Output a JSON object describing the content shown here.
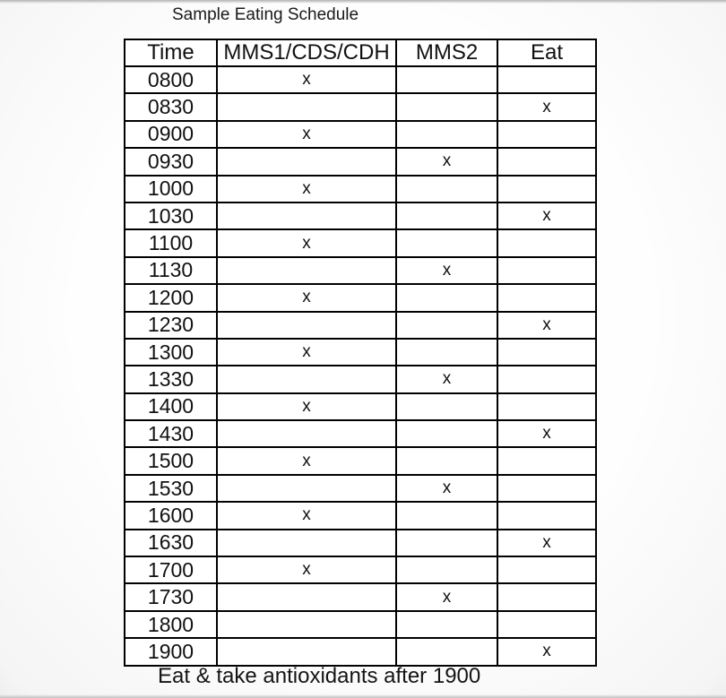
{
  "page": {
    "title": "Sample Eating Schedule",
    "footer": "Eat & take antioxidants after 1900"
  },
  "table": {
    "columns": [
      "Time",
      "MMS1/CDS/CDH",
      "MMS2",
      "Eat"
    ],
    "rows": [
      [
        "0800",
        "x",
        "",
        ""
      ],
      [
        "0830",
        "",
        "",
        "x"
      ],
      [
        "0900",
        "x",
        "",
        ""
      ],
      [
        "0930",
        "",
        "x",
        ""
      ],
      [
        "1000",
        "x",
        "",
        ""
      ],
      [
        "1030",
        "",
        "",
        "x"
      ],
      [
        "1100",
        "x",
        "",
        ""
      ],
      [
        "1130",
        "",
        "x",
        ""
      ],
      [
        "1200",
        "x",
        "",
        ""
      ],
      [
        "1230",
        "",
        "",
        "x"
      ],
      [
        "1300",
        "x",
        "",
        ""
      ],
      [
        "1330",
        "",
        "x",
        ""
      ],
      [
        "1400",
        "x",
        "",
        ""
      ],
      [
        "1430",
        "",
        "",
        "x"
      ],
      [
        "1500",
        "x",
        "",
        ""
      ],
      [
        "1530",
        "",
        "x",
        ""
      ],
      [
        "1600",
        "x",
        "",
        ""
      ],
      [
        "1630",
        "",
        "",
        "x"
      ],
      [
        "1700",
        "x",
        "",
        ""
      ],
      [
        "1730",
        "",
        "x",
        ""
      ],
      [
        "1800",
        "",
        "",
        ""
      ],
      [
        "1900",
        "",
        "",
        "x"
      ]
    ]
  }
}
